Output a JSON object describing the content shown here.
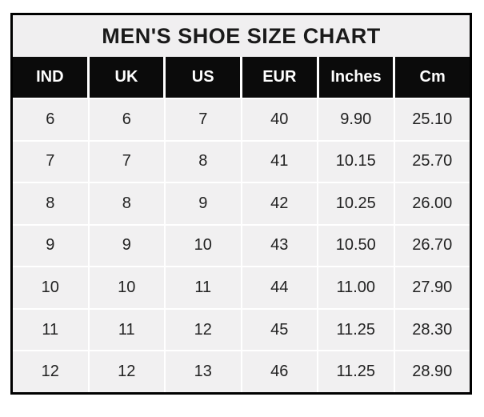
{
  "title": "MEN'S SHOE SIZE CHART",
  "colors": {
    "page_background": "#ffffff",
    "outer_border": "#000000",
    "title_background": "#f0eff0",
    "header_background": "#0b0b0b",
    "header_text": "#ffffff",
    "cell_background": "#f1f0f1",
    "cell_text": "#222222",
    "gridline": "#ffffff"
  },
  "chart_data": {
    "type": "table",
    "title": "MEN'S SHOE SIZE CHART",
    "columns": [
      "IND",
      "UK",
      "US",
      "EUR",
      "Inches",
      "Cm"
    ],
    "rows": [
      [
        "6",
        "6",
        "7",
        "40",
        "9.90",
        "25.10"
      ],
      [
        "7",
        "7",
        "8",
        "41",
        "10.15",
        "25.70"
      ],
      [
        "8",
        "8",
        "9",
        "42",
        "10.25",
        "26.00"
      ],
      [
        "9",
        "9",
        "10",
        "43",
        "10.50",
        "26.70"
      ],
      [
        "10",
        "10",
        "11",
        "44",
        "11.00",
        "27.90"
      ],
      [
        "11",
        "11",
        "12",
        "45",
        "11.25",
        "28.30"
      ],
      [
        "12",
        "12",
        "13",
        "46",
        "11.25",
        "28.90"
      ]
    ]
  }
}
